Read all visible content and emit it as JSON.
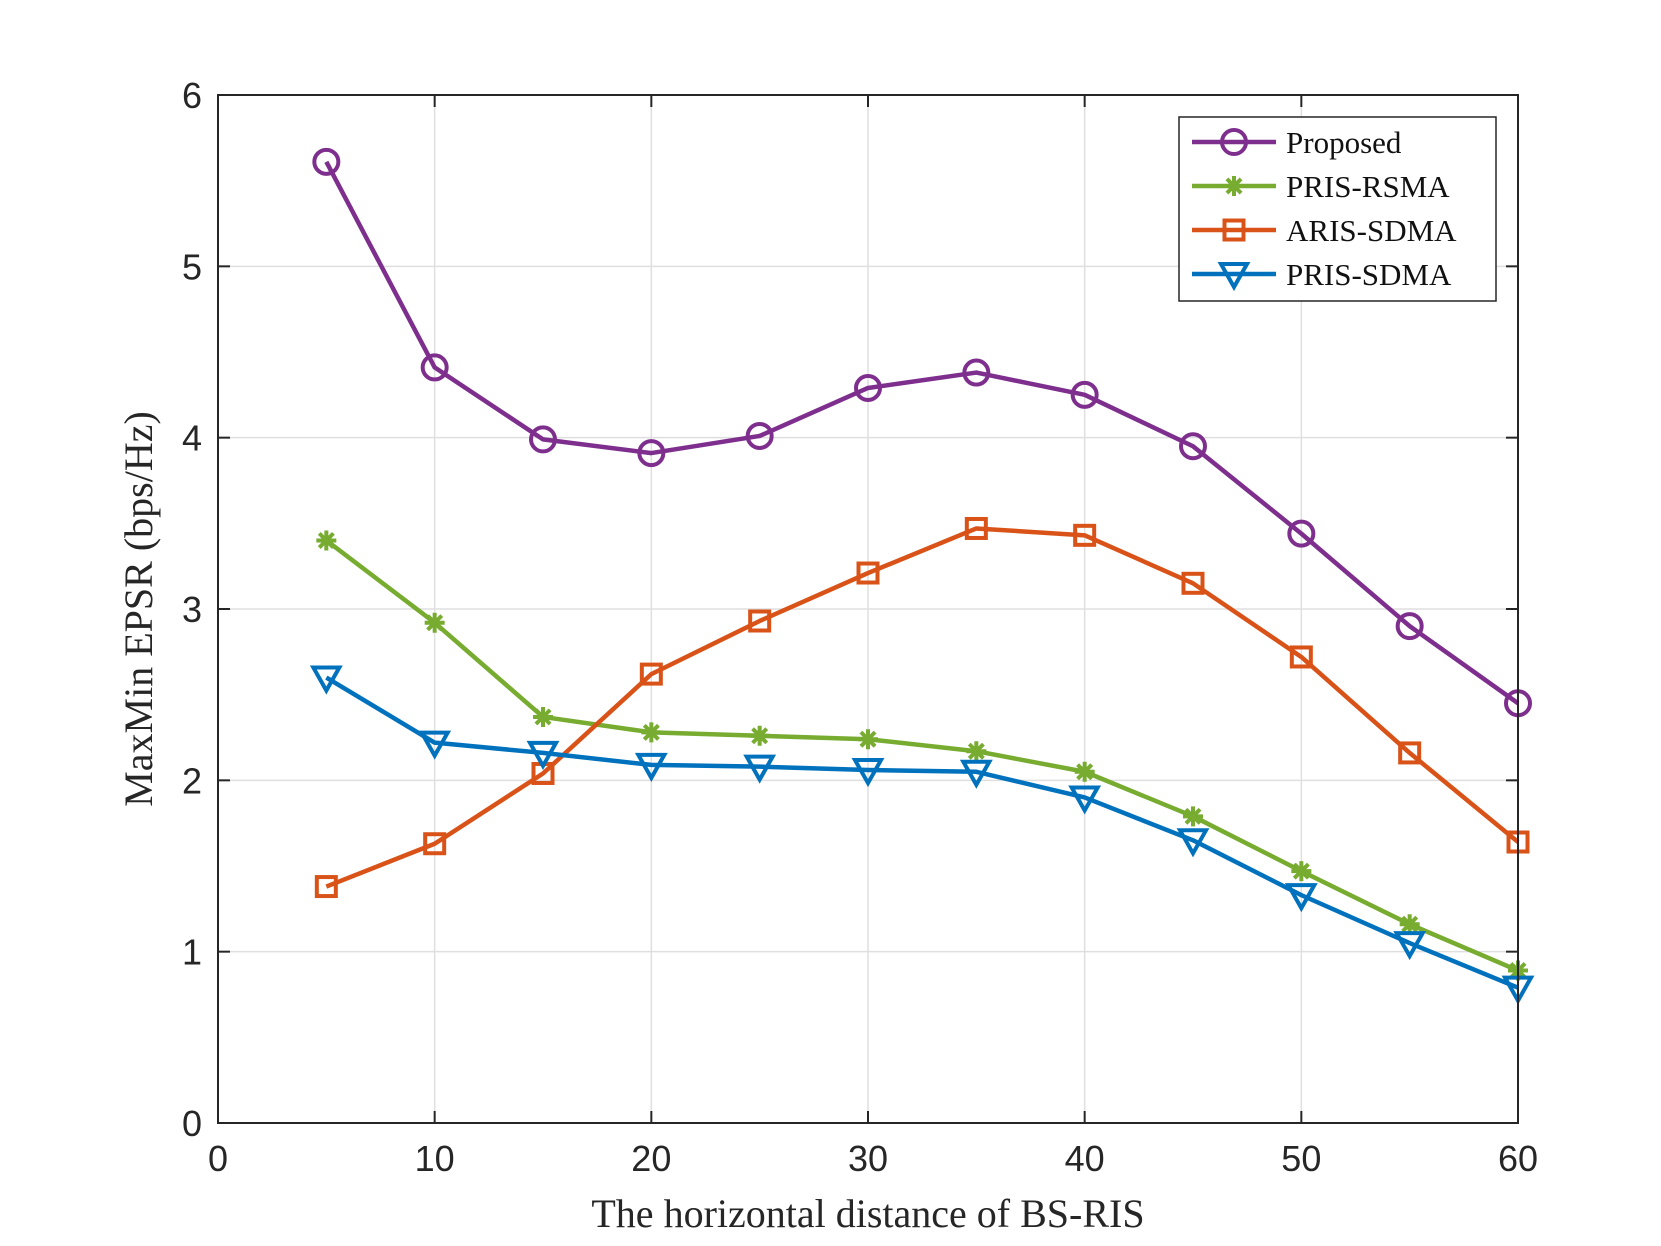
{
  "chart_data": {
    "type": "line",
    "title": "",
    "xlabel": "The horizontal distance of BS-RIS",
    "ylabel": "MaxMin EPSR (bps/Hz)",
    "xlim": [
      0,
      60
    ],
    "ylim": [
      0,
      6
    ],
    "xticks": [
      0,
      10,
      20,
      30,
      40,
      50,
      60
    ],
    "yticks": [
      0,
      1,
      2,
      3,
      4,
      5,
      6
    ],
    "grid": true,
    "legend_position": "top-right",
    "x": [
      5,
      10,
      15,
      20,
      25,
      30,
      35,
      40,
      45,
      50,
      55,
      60
    ],
    "series": [
      {
        "name": "Proposed",
        "marker": "circle",
        "color": "#7e2f8e",
        "values": [
          5.61,
          4.41,
          3.99,
          3.91,
          4.01,
          4.29,
          4.38,
          4.25,
          3.95,
          3.44,
          2.9,
          2.45
        ]
      },
      {
        "name": "PRIS-RSMA",
        "marker": "star",
        "color": "#77ac30",
        "values": [
          3.4,
          2.92,
          2.37,
          2.28,
          2.26,
          2.24,
          2.17,
          2.05,
          1.79,
          1.47,
          1.16,
          0.89
        ]
      },
      {
        "name": "ARIS-SDMA",
        "marker": "square",
        "color": "#d95319",
        "values": [
          1.38,
          1.63,
          2.04,
          2.62,
          2.93,
          3.21,
          3.47,
          3.43,
          3.15,
          2.72,
          2.16,
          1.64
        ]
      },
      {
        "name": "PRIS-SDMA",
        "marker": "triangle-down",
        "color": "#0072bd",
        "values": [
          2.6,
          2.22,
          2.16,
          2.09,
          2.08,
          2.06,
          2.05,
          1.9,
          1.65,
          1.33,
          1.05,
          0.79
        ]
      }
    ]
  }
}
